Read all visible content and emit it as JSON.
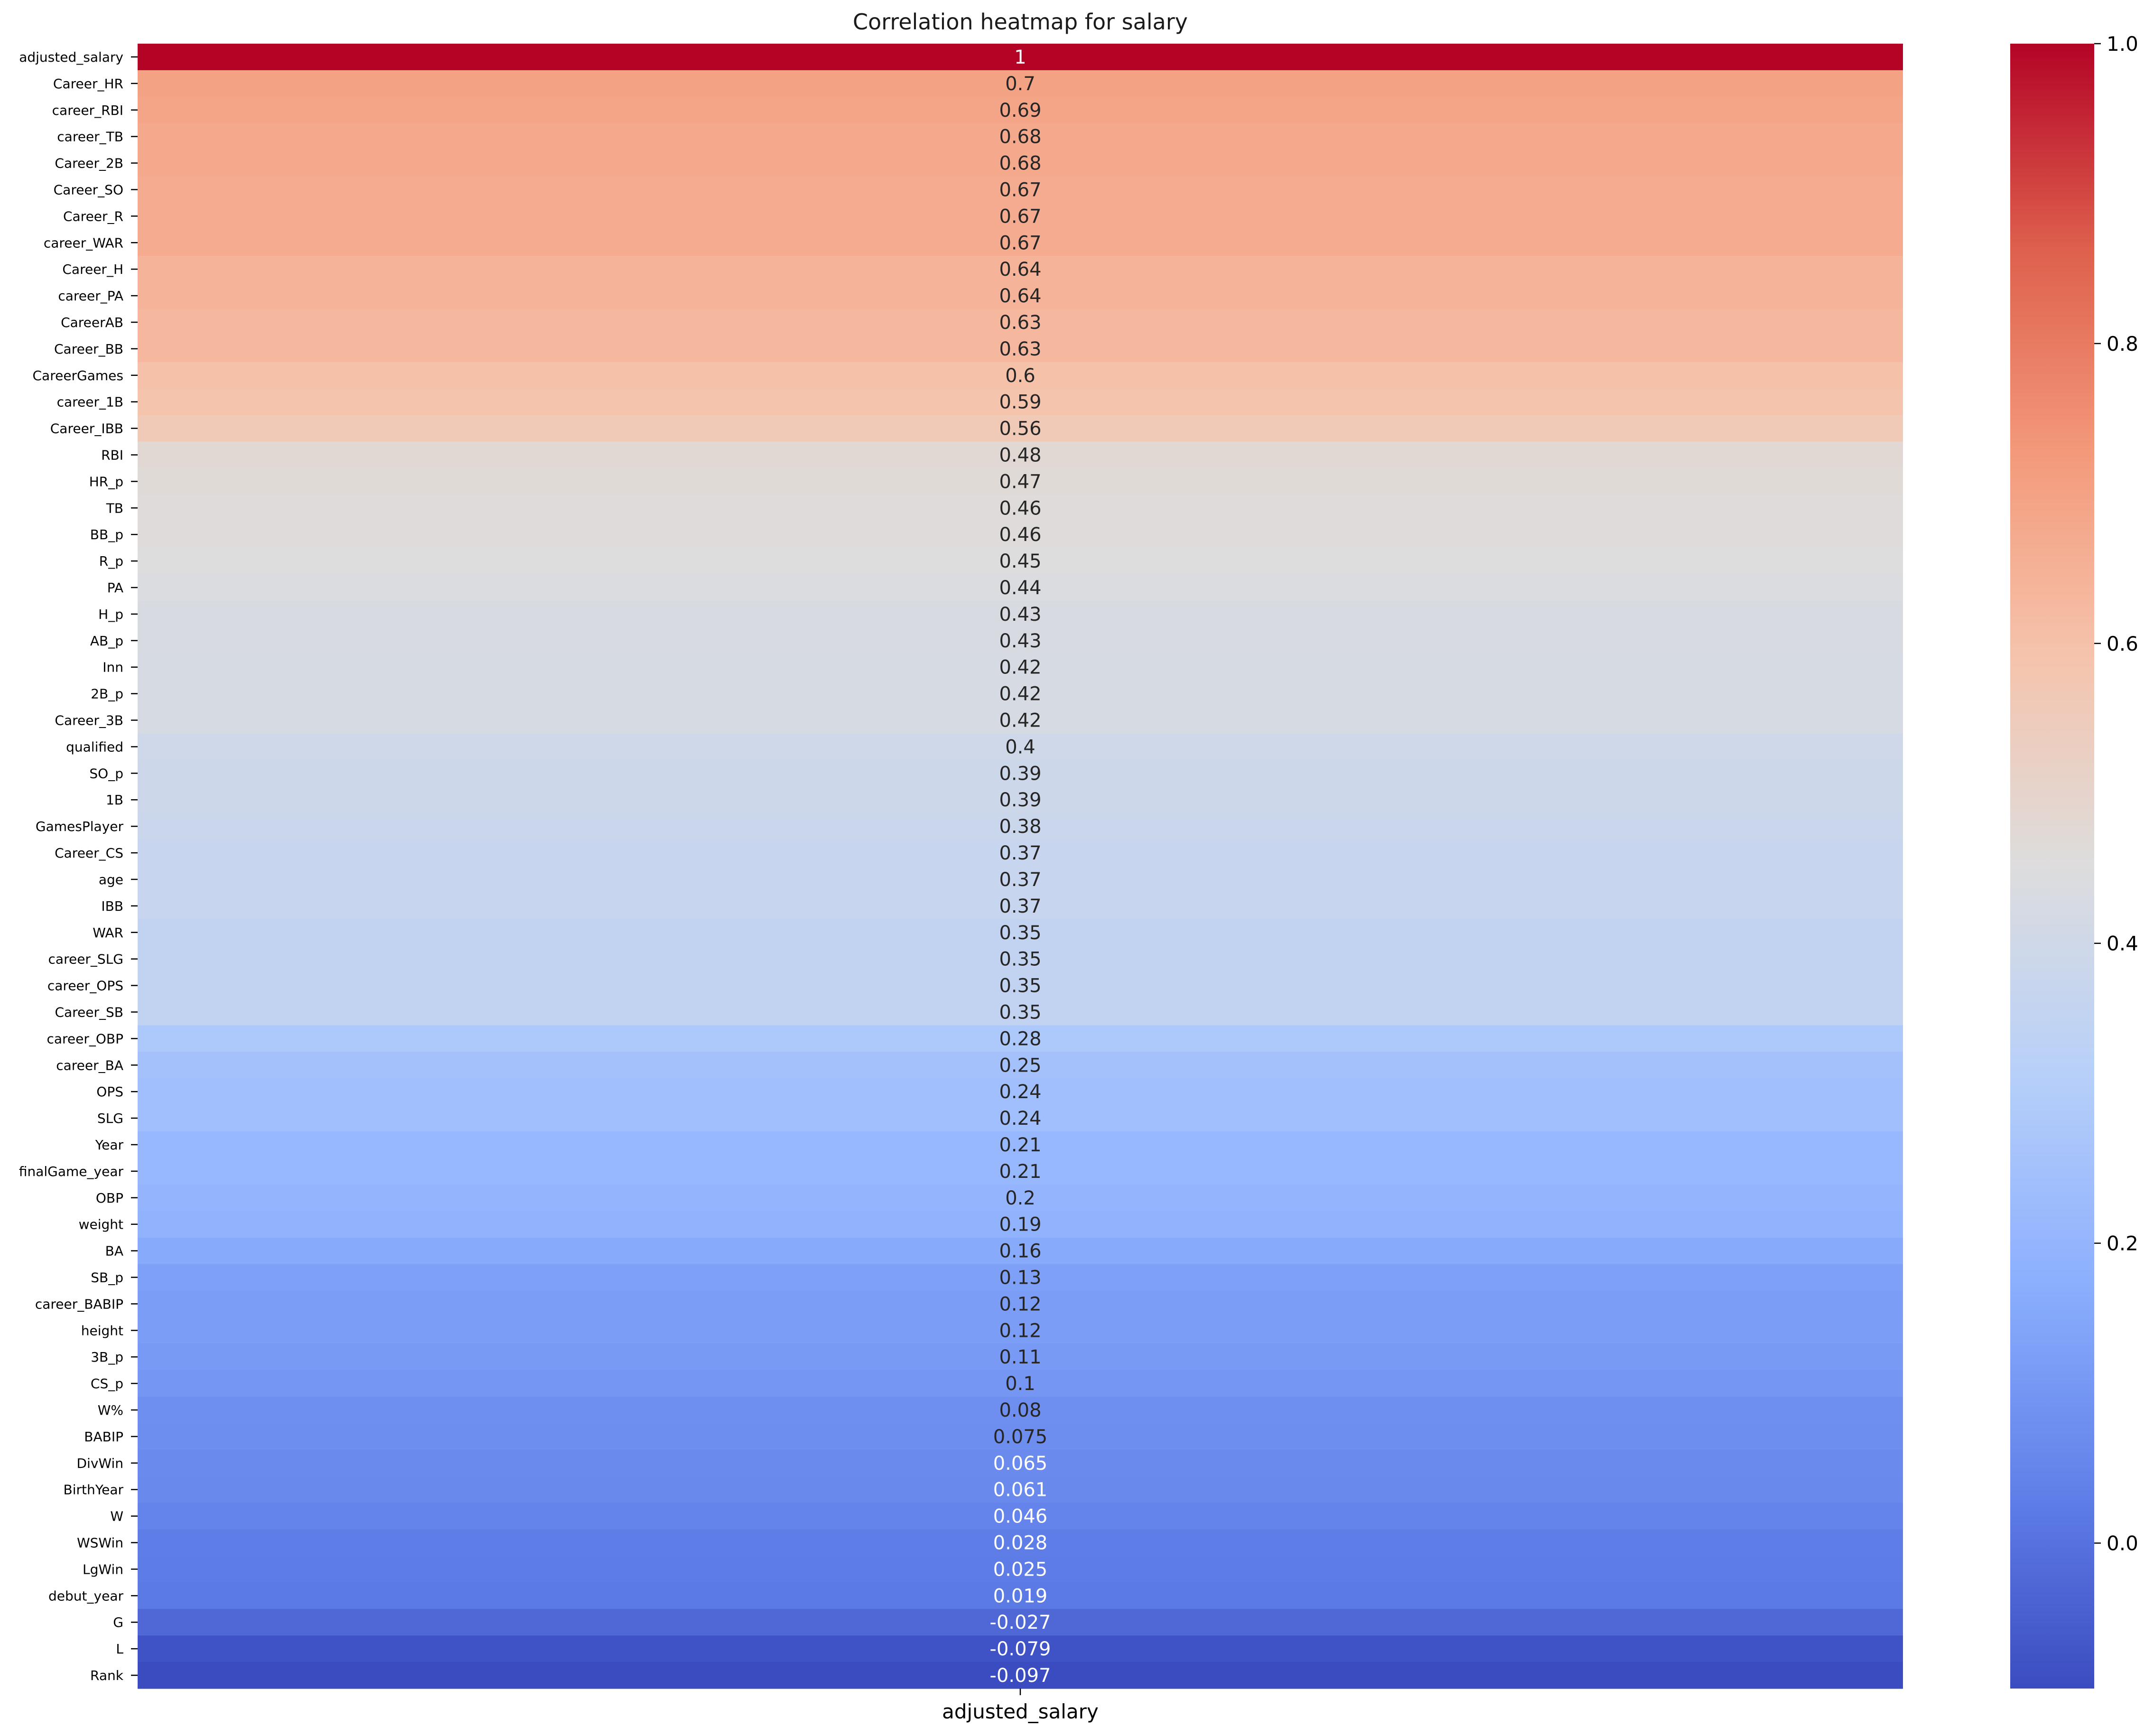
{
  "chart_data": {
    "type": "heatmap",
    "title": "Correlation heatmap for salary",
    "xlabel": "",
    "ylabel": "",
    "columns": [
      "adjusted_salary"
    ],
    "rows": [
      "adjusted_salary",
      "Career_HR",
      "career_RBI",
      "career_TB",
      "Career_2B",
      "Career_SO",
      "Career_R",
      "career_WAR",
      "Career_H",
      "career_PA",
      "CareerAB",
      "Career_BB",
      "CareerGames",
      "career_1B",
      "Career_IBB",
      "RBI",
      "HR_p",
      "TB",
      "BB_p",
      "R_p",
      "PA",
      "H_p",
      "AB_p",
      "Inn",
      "2B_p",
      "Career_3B",
      "qualified",
      "SO_p",
      "1B",
      "GamesPlayer",
      "Career_CS",
      "age",
      "IBB",
      "WAR",
      "career_SLG",
      "career_OPS",
      "Career_SB",
      "career_OBP",
      "career_BA",
      "OPS",
      "SLG",
      "Year",
      "finalGame_year",
      "OBP",
      "weight",
      "BA",
      "SB_p",
      "career_BABIP",
      "height",
      "3B_p",
      "CS_p",
      "W%",
      "BABIP",
      "DivWin",
      "BirthYear",
      "W",
      "WSWin",
      "LgWin",
      "debut_year",
      "G",
      "L",
      "Rank"
    ],
    "values": [
      1,
      0.7,
      0.69,
      0.68,
      0.68,
      0.67,
      0.67,
      0.67,
      0.64,
      0.64,
      0.63,
      0.63,
      0.6,
      0.59,
      0.56,
      0.48,
      0.47,
      0.46,
      0.46,
      0.45,
      0.44,
      0.43,
      0.43,
      0.42,
      0.42,
      0.42,
      0.4,
      0.39,
      0.39,
      0.38,
      0.37,
      0.37,
      0.37,
      0.35,
      0.35,
      0.35,
      0.35,
      0.28,
      0.25,
      0.24,
      0.24,
      0.21,
      0.21,
      0.2,
      0.19,
      0.16,
      0.13,
      0.12,
      0.12,
      0.11,
      0.1,
      0.08,
      0.075,
      0.065,
      0.061,
      0.046,
      0.028,
      0.025,
      0.019,
      -0.027,
      -0.079,
      -0.097
    ],
    "value_labels": [
      "1",
      "0.7",
      "0.69",
      "0.68",
      "0.68",
      "0.67",
      "0.67",
      "0.67",
      "0.64",
      "0.64",
      "0.63",
      "0.63",
      "0.6",
      "0.59",
      "0.56",
      "0.48",
      "0.47",
      "0.46",
      "0.46",
      "0.45",
      "0.44",
      "0.43",
      "0.43",
      "0.42",
      "0.42",
      "0.42",
      "0.4",
      "0.39",
      "0.39",
      "0.38",
      "0.37",
      "0.37",
      "0.37",
      "0.35",
      "0.35",
      "0.35",
      "0.35",
      "0.28",
      "0.25",
      "0.24",
      "0.24",
      "0.21",
      "0.21",
      "0.2",
      "0.19",
      "0.16",
      "0.13",
      "0.12",
      "0.12",
      "0.11",
      "0.1",
      "0.08",
      "0.075",
      "0.065",
      "0.061",
      "0.046",
      "0.028",
      "0.025",
      "0.019",
      "-0.027",
      "-0.079",
      "-0.097"
    ],
    "colormap": "coolwarm",
    "colorbar": {
      "range": [
        -0.097,
        1
      ],
      "ticks": [
        0.0,
        0.2,
        0.4,
        0.6,
        0.8,
        1.0
      ],
      "tick_labels": [
        "0.0",
        "0.2",
        "0.4",
        "0.6",
        "0.8",
        "1.0"
      ],
      "position": "right"
    },
    "annotated": true,
    "grid": false
  }
}
